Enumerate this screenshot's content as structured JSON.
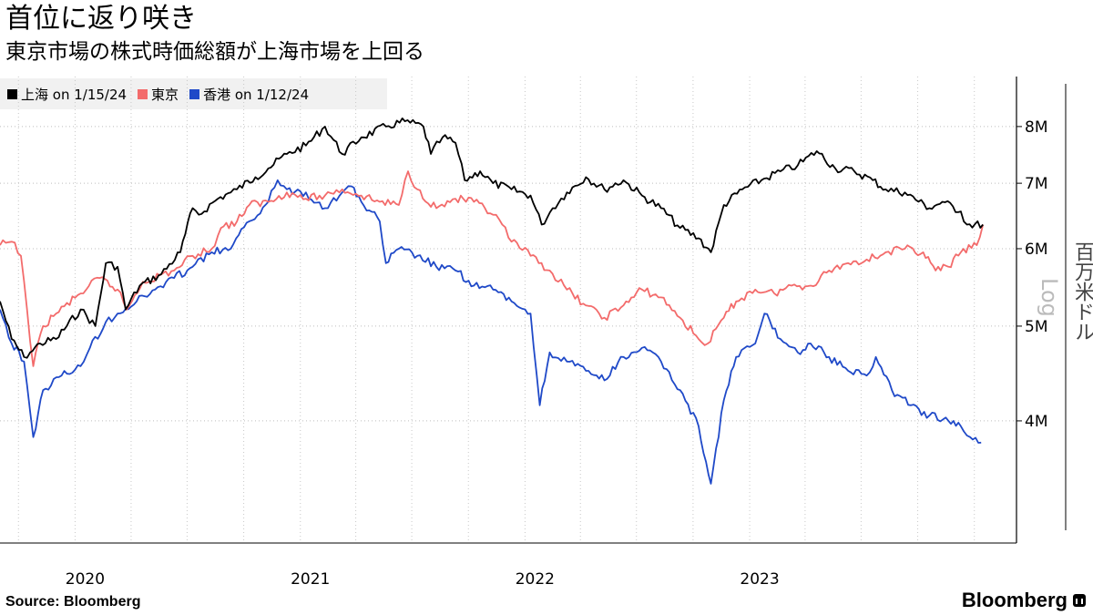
{
  "title": "首位に返り咲き",
  "subtitle": "東京市場の株式時価総額が上海市場を上回る",
  "source": "Source:  Bloomberg",
  "brand": "Bloomberg",
  "unit_label": "百万米ドル",
  "scale_label": "Log",
  "chart_data": {
    "type": "line",
    "yscale": "log",
    "ylim": [
      3000000,
      9000000
    ],
    "yticks": [
      4000000,
      5000000,
      6000000,
      7000000,
      8000000
    ],
    "ytick_labels": [
      "4M",
      "5M",
      "6M",
      "7M",
      "8M"
    ],
    "xlim": [
      "2019-09-01",
      "2024-01-31"
    ],
    "xticks": [
      "2020-01-01",
      "2021-01-01",
      "2022-01-01",
      "2023-01-01"
    ],
    "xtick_labels": [
      "2020",
      "2021",
      "2022",
      "2023"
    ],
    "grid": true,
    "legend_position": "top-left",
    "series": [
      {
        "name": "上海 on 1/15/24",
        "color": "#000000",
        "points": [
          [
            "2019-09-01",
            5300000
          ],
          [
            "2019-09-20",
            4850000
          ],
          [
            "2019-10-10",
            4650000
          ],
          [
            "2019-10-20",
            4700000
          ],
          [
            "2019-11-05",
            4800000
          ],
          [
            "2019-12-01",
            4850000
          ],
          [
            "2020-01-10",
            5200000
          ],
          [
            "2020-02-03",
            5000000
          ],
          [
            "2020-02-20",
            5800000
          ],
          [
            "2020-03-10",
            5750000
          ],
          [
            "2020-03-23",
            5200000
          ],
          [
            "2020-04-15",
            5500000
          ],
          [
            "2020-05-20",
            5650000
          ],
          [
            "2020-06-20",
            5950000
          ],
          [
            "2020-07-10",
            6600000
          ],
          [
            "2020-07-20",
            6500000
          ],
          [
            "2020-08-20",
            6750000
          ],
          [
            "2020-09-10",
            6850000
          ],
          [
            "2020-09-20",
            6900000
          ],
          [
            "2020-10-20",
            7100000
          ],
          [
            "2020-11-10",
            7250000
          ],
          [
            "2020-12-10",
            7500000
          ],
          [
            "2021-01-10",
            7650000
          ],
          [
            "2021-02-10",
            8000000
          ],
          [
            "2021-03-10",
            7500000
          ],
          [
            "2021-04-10",
            7800000
          ],
          [
            "2021-05-20",
            8000000
          ],
          [
            "2021-06-20",
            8100000
          ],
          [
            "2021-07-20",
            8000000
          ],
          [
            "2021-08-01",
            7500000
          ],
          [
            "2021-08-20",
            7800000
          ],
          [
            "2021-09-10",
            7700000
          ],
          [
            "2021-09-25",
            7050000
          ],
          [
            "2021-10-20",
            7200000
          ],
          [
            "2021-11-10",
            7000000
          ],
          [
            "2021-12-10",
            6900000
          ],
          [
            "2022-01-10",
            6800000
          ],
          [
            "2022-01-28",
            6350000
          ],
          [
            "2022-02-15",
            6600000
          ],
          [
            "2022-03-10",
            6850000
          ],
          [
            "2022-04-10",
            7100000
          ],
          [
            "2022-05-10",
            6900000
          ],
          [
            "2022-06-10",
            7050000
          ],
          [
            "2022-07-10",
            6800000
          ],
          [
            "2022-08-10",
            6600000
          ],
          [
            "2022-09-10",
            6300000
          ],
          [
            "2022-10-10",
            6150000
          ],
          [
            "2022-10-30",
            5950000
          ],
          [
            "2022-11-20",
            6650000
          ],
          [
            "2022-12-20",
            6900000
          ],
          [
            "2023-01-20",
            7050000
          ],
          [
            "2023-02-20",
            7200000
          ],
          [
            "2023-03-20",
            7300000
          ],
          [
            "2023-04-20",
            7550000
          ],
          [
            "2023-05-20",
            7250000
          ],
          [
            "2023-06-20",
            7200000
          ],
          [
            "2023-07-20",
            7050000
          ],
          [
            "2023-08-10",
            6900000
          ],
          [
            "2023-09-10",
            6850000
          ],
          [
            "2023-10-20",
            6600000
          ],
          [
            "2023-11-10",
            6700000
          ],
          [
            "2023-12-10",
            6550000
          ],
          [
            "2023-12-20",
            6350000
          ],
          [
            "2024-01-15",
            6350000
          ]
        ]
      },
      {
        "name": "東京",
        "color": "#f36b6b",
        "points": [
          [
            "2019-09-01",
            6050000
          ],
          [
            "2019-09-20",
            6100000
          ],
          [
            "2019-10-05",
            5900000
          ],
          [
            "2019-10-15",
            5200000
          ],
          [
            "2019-10-25",
            4550000
          ],
          [
            "2019-11-10",
            5000000
          ],
          [
            "2019-12-01",
            5150000
          ],
          [
            "2020-01-10",
            5400000
          ],
          [
            "2020-02-10",
            5600000
          ],
          [
            "2020-03-10",
            5450000
          ],
          [
            "2020-03-25",
            5200000
          ],
          [
            "2020-04-20",
            5550000
          ],
          [
            "2020-06-10",
            5700000
          ],
          [
            "2020-07-10",
            5900000
          ],
          [
            "2020-08-10",
            6000000
          ],
          [
            "2020-08-25",
            6300000
          ],
          [
            "2020-09-20",
            6400000
          ],
          [
            "2020-10-10",
            6650000
          ],
          [
            "2020-11-10",
            6700000
          ],
          [
            "2020-12-10",
            6850000
          ],
          [
            "2021-01-10",
            6750000
          ],
          [
            "2021-02-10",
            6800000
          ],
          [
            "2021-03-10",
            6900000
          ],
          [
            "2021-04-10",
            6800000
          ],
          [
            "2021-05-10",
            6700000
          ],
          [
            "2021-06-10",
            6650000
          ],
          [
            "2021-06-25",
            7200000
          ],
          [
            "2021-07-10",
            6900000
          ],
          [
            "2021-08-10",
            6600000
          ],
          [
            "2021-09-10",
            6750000
          ],
          [
            "2021-10-10",
            6700000
          ],
          [
            "2021-11-10",
            6500000
          ],
          [
            "2021-11-25",
            6350000
          ],
          [
            "2021-12-10",
            6100000
          ],
          [
            "2022-01-10",
            5900000
          ],
          [
            "2022-02-10",
            5700000
          ],
          [
            "2022-03-10",
            5450000
          ],
          [
            "2022-04-10",
            5250000
          ],
          [
            "2022-05-10",
            5100000
          ],
          [
            "2022-06-10",
            5250000
          ],
          [
            "2022-07-10",
            5450000
          ],
          [
            "2022-08-10",
            5350000
          ],
          [
            "2022-09-10",
            5100000
          ],
          [
            "2022-10-10",
            4850000
          ],
          [
            "2022-10-25",
            4800000
          ],
          [
            "2022-11-20",
            5100000
          ],
          [
            "2022-12-10",
            5300000
          ],
          [
            "2023-01-10",
            5450000
          ],
          [
            "2023-02-10",
            5400000
          ],
          [
            "2023-03-10",
            5500000
          ],
          [
            "2023-04-10",
            5500000
          ],
          [
            "2023-05-10",
            5700000
          ],
          [
            "2023-06-10",
            5800000
          ],
          [
            "2023-07-10",
            5850000
          ],
          [
            "2023-08-10",
            5950000
          ],
          [
            "2023-09-10",
            6000000
          ],
          [
            "2023-10-10",
            5950000
          ],
          [
            "2023-10-30",
            5700000
          ],
          [
            "2023-11-20",
            5750000
          ],
          [
            "2023-12-10",
            5950000
          ],
          [
            "2024-01-05",
            6050000
          ],
          [
            "2024-01-15",
            6350000
          ]
        ]
      },
      {
        "name": "香港 on 1/12/24",
        "color": "#1f49c8",
        "points": [
          [
            "2019-09-01",
            5200000
          ],
          [
            "2019-09-20",
            4800000
          ],
          [
            "2019-10-10",
            4600000
          ],
          [
            "2019-10-25",
            3850000
          ],
          [
            "2019-11-10",
            4300000
          ],
          [
            "2019-12-10",
            4450000
          ],
          [
            "2020-01-10",
            4550000
          ],
          [
            "2020-01-25",
            4750000
          ],
          [
            "2020-02-20",
            5050000
          ],
          [
            "2020-03-10",
            5150000
          ],
          [
            "2020-04-10",
            5300000
          ],
          [
            "2020-05-10",
            5450000
          ],
          [
            "2020-06-10",
            5600000
          ],
          [
            "2020-07-10",
            5750000
          ],
          [
            "2020-08-10",
            5950000
          ],
          [
            "2020-09-10",
            6000000
          ],
          [
            "2020-10-10",
            6400000
          ],
          [
            "2020-11-10",
            6700000
          ],
          [
            "2020-11-25",
            7050000
          ],
          [
            "2020-12-10",
            6900000
          ],
          [
            "2021-01-10",
            6850000
          ],
          [
            "2021-02-10",
            6600000
          ],
          [
            "2021-03-10",
            6850000
          ],
          [
            "2021-03-25",
            6950000
          ],
          [
            "2021-04-10",
            6700000
          ],
          [
            "2021-05-10",
            6400000
          ],
          [
            "2021-05-20",
            5800000
          ],
          [
            "2021-06-10",
            6000000
          ],
          [
            "2021-07-10",
            5900000
          ],
          [
            "2021-08-10",
            5750000
          ],
          [
            "2021-09-10",
            5700000
          ],
          [
            "2021-10-10",
            5500000
          ],
          [
            "2021-11-10",
            5450000
          ],
          [
            "2021-12-10",
            5300000
          ],
          [
            "2022-01-10",
            5150000
          ],
          [
            "2022-01-25",
            4150000
          ],
          [
            "2022-02-10",
            4700000
          ],
          [
            "2022-03-10",
            4600000
          ],
          [
            "2022-04-10",
            4500000
          ],
          [
            "2022-05-10",
            4400000
          ],
          [
            "2022-06-10",
            4650000
          ],
          [
            "2022-07-10",
            4750000
          ],
          [
            "2022-08-10",
            4600000
          ],
          [
            "2022-09-10",
            4300000
          ],
          [
            "2022-10-10",
            3950000
          ],
          [
            "2022-10-30",
            3450000
          ],
          [
            "2022-11-20",
            4200000
          ],
          [
            "2022-12-10",
            4650000
          ],
          [
            "2023-01-10",
            4800000
          ],
          [
            "2023-01-25",
            5150000
          ],
          [
            "2023-02-20",
            4850000
          ],
          [
            "2023-03-20",
            4700000
          ],
          [
            "2023-04-10",
            4800000
          ],
          [
            "2023-05-10",
            4650000
          ],
          [
            "2023-06-10",
            4500000
          ],
          [
            "2023-07-10",
            4450000
          ],
          [
            "2023-07-25",
            4650000
          ],
          [
            "2023-08-20",
            4300000
          ],
          [
            "2023-09-20",
            4150000
          ],
          [
            "2023-10-20",
            4050000
          ],
          [
            "2023-11-20",
            4000000
          ],
          [
            "2023-12-10",
            3950000
          ],
          [
            "2023-12-25",
            3850000
          ],
          [
            "2024-01-12",
            3800000
          ]
        ]
      }
    ]
  }
}
